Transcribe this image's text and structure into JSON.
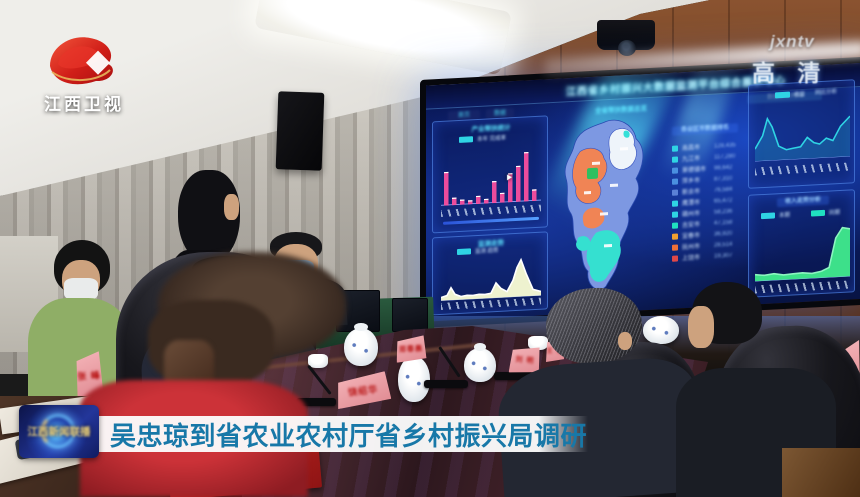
{
  "broadcast": {
    "channel_logo": "江西卫视",
    "watermark": "jxntv",
    "hd_label": "高 清",
    "news_program_badge": "江西新闻联播",
    "caption": "吴忠琼到省农业农村厅省乡村振兴局调研",
    "caption_text_color": "#1878a8"
  },
  "screen": {
    "title": "江西省乡村振兴大数据监测平台综合展示中心",
    "header_right_label": "数据更新时间",
    "tabs": [
      {
        "label": "首页"
      },
      {
        "label": "数据"
      }
    ],
    "center_label": "全省帮扶数据总览",
    "panels": {
      "p1_title": "产业帮扶统计",
      "p1_legend": "本年 完成率",
      "p2_title": "监测走势",
      "p2_legend": "监测 趋势",
      "p3_legend_a": "收益",
      "p3_legend_b": "同比分析",
      "p4_title": "收入走势分析",
      "p4_legend_a": "本期",
      "p4_legend_b": "同期"
    },
    "legend_panel": {
      "title": "各设区市数据排名",
      "rows": [
        {
          "color": "#2fd4e4",
          "name": "南昌市",
          "value": "128,435"
        },
        {
          "color": "#2fd4e4",
          "name": "九江市",
          "value": "117,280"
        },
        {
          "color": "#4a90e0",
          "name": "景德镇市",
          "value": "98,642"
        },
        {
          "color": "#4a90e0",
          "name": "萍乡市",
          "value": "87,310"
        },
        {
          "color": "#5a80d6",
          "name": "新余市",
          "value": "76,584"
        },
        {
          "color": "#2fd4e4",
          "name": "鹰潭市",
          "value": "65,472"
        },
        {
          "color": "#2fd4e4",
          "name": "赣州市",
          "value": "58,236"
        },
        {
          "color": "#20e0c0",
          "name": "吉安市",
          "value": "47,158"
        },
        {
          "color": "#f0a030",
          "name": "宜春市",
          "value": "36,920"
        },
        {
          "color": "#f07038",
          "name": "抚州市",
          "value": "28,514"
        },
        {
          "color": "#e04848",
          "name": "上饶市",
          "value": "19,307"
        }
      ]
    },
    "map_palette": {
      "base": "#7d98e2",
      "northeast": "#eef4fa",
      "notch": "#35e0d8",
      "west": "#f08455",
      "green_patch": "#2fc060",
      "lower": "#f08455",
      "south": "#35e0d0",
      "southwest": "#35e0d0"
    }
  },
  "chart_data": [
    {
      "type": "bar",
      "panel": "screen-top-left",
      "values": [
        58,
        13,
        9,
        7,
        14,
        8,
        38,
        17,
        50,
        62,
        85,
        20
      ],
      "bar_color": "#ff4fa0",
      "cap_color": "#ffffff",
      "ylim": [
        0,
        100
      ]
    },
    {
      "type": "area",
      "panel": "screen-bottom-left",
      "points": [
        [
          0,
          8
        ],
        [
          6,
          12
        ],
        [
          10,
          30
        ],
        [
          14,
          14
        ],
        [
          20,
          8
        ],
        [
          26,
          10
        ],
        [
          32,
          9
        ],
        [
          38,
          11
        ],
        [
          44,
          10
        ],
        [
          50,
          12
        ],
        [
          55,
          36
        ],
        [
          60,
          22
        ],
        [
          66,
          14
        ],
        [
          72,
          40
        ],
        [
          76,
          70
        ],
        [
          80,
          88
        ],
        [
          85,
          55
        ],
        [
          92,
          16
        ],
        [
          100,
          10
        ]
      ],
      "fill": "#eef2cf",
      "stroke": "#ffffff",
      "ylim": [
        0,
        100
      ]
    },
    {
      "type": "line",
      "panel": "screen-top-right",
      "points": [
        [
          0,
          22
        ],
        [
          8,
          45
        ],
        [
          13,
          75
        ],
        [
          18,
          60
        ],
        [
          25,
          25
        ],
        [
          33,
          18
        ],
        [
          40,
          20
        ],
        [
          48,
          22
        ],
        [
          55,
          38
        ],
        [
          62,
          28
        ],
        [
          68,
          25
        ],
        [
          75,
          35
        ],
        [
          82,
          30
        ],
        [
          90,
          55
        ],
        [
          100,
          72
        ]
      ],
      "stroke": "#2fd4e4",
      "fill": "rgba(47,212,228,0.22)",
      "ylim": [
        0,
        100
      ]
    },
    {
      "type": "area",
      "panel": "screen-bottom-right",
      "points": [
        [
          0,
          12
        ],
        [
          10,
          10
        ],
        [
          20,
          12
        ],
        [
          30,
          9
        ],
        [
          40,
          10
        ],
        [
          50,
          11
        ],
        [
          60,
          9
        ],
        [
          70,
          12
        ],
        [
          78,
          18
        ],
        [
          85,
          70
        ],
        [
          92,
          88
        ],
        [
          100,
          85
        ]
      ],
      "fill": "#3de08a",
      "stroke": "#8cf5c0",
      "ylim": [
        0,
        100
      ]
    }
  ],
  "room": {
    "name_plates": [
      {
        "name": "张 峰"
      },
      {
        "name": "饶绍华"
      },
      {
        "name": "郑春晨"
      },
      {
        "name": "刘 明"
      },
      {
        "name": "王 华"
      }
    ],
    "red_folder_label": "工作手册"
  }
}
